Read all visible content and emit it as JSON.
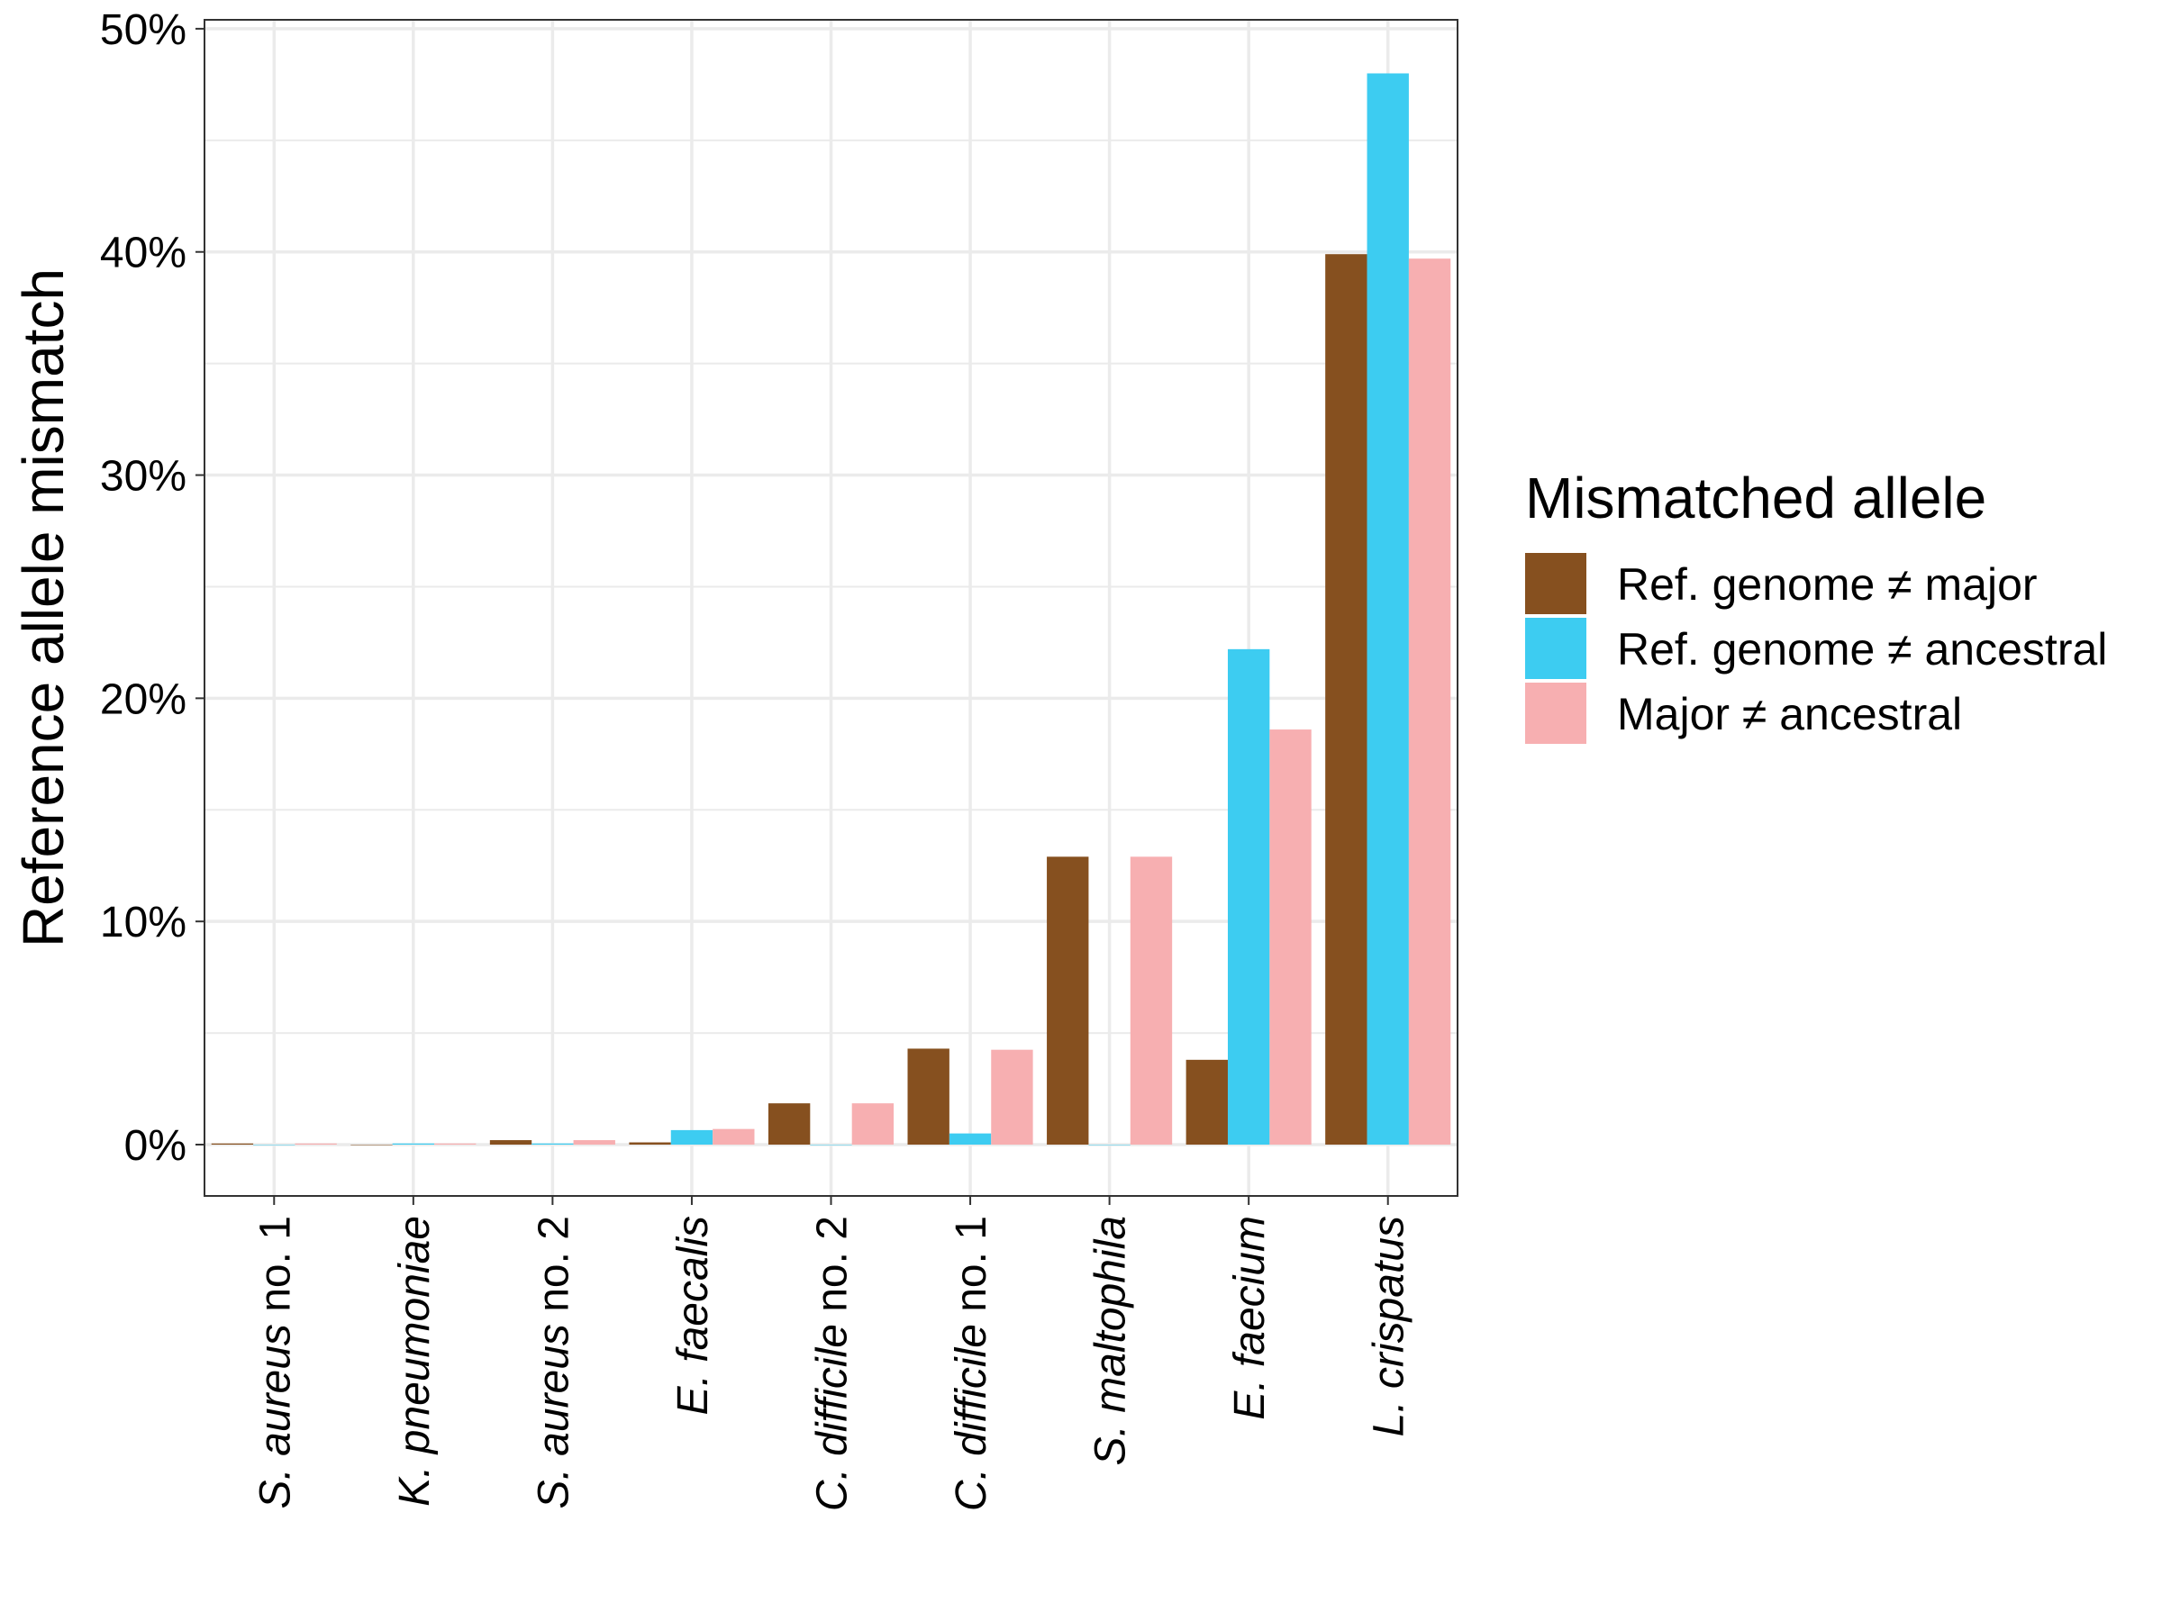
{
  "chart_data": {
    "type": "bar",
    "title": "",
    "xlabel": "",
    "ylabel": "Reference allele mismatch",
    "ylim": [
      -2.3,
      50.4
    ],
    "yticks": [
      0,
      10,
      20,
      30,
      40,
      50
    ],
    "ytick_labels": [
      "0%",
      "10%",
      "20%",
      "30%",
      "40%",
      "50%"
    ],
    "grid": true,
    "legend_position": "right",
    "legend_title": "Mismatched allele",
    "categories": [
      {
        "italic": "S. aureus",
        "suffix": " no. 1"
      },
      {
        "italic": "K. pneumoniae",
        "suffix": ""
      },
      {
        "italic": "S. aureus",
        "suffix": " no. 2"
      },
      {
        "italic": "E. faecalis",
        "suffix": ""
      },
      {
        "italic": "C. difficile",
        "suffix": " no. 2"
      },
      {
        "italic": "C. difficile",
        "suffix": " no. 1"
      },
      {
        "italic": "S. maltophila",
        "suffix": ""
      },
      {
        "italic": "E. faecium",
        "suffix": ""
      },
      {
        "italic": "L. crispatus",
        "suffix": ""
      }
    ],
    "series": [
      {
        "name": "Ref. genome ≠ major",
        "color": "#86501F",
        "values": [
          0.05,
          0.0,
          0.2,
          0.1,
          1.85,
          4.3,
          12.9,
          3.8,
          39.9
        ]
      },
      {
        "name": "Ref. genome ≠ ancestral",
        "color": "#3DCCF1",
        "values": [
          0.0,
          0.05,
          0.05,
          0.65,
          0.0,
          0.5,
          0.0,
          22.2,
          48.0
        ]
      },
      {
        "name": "Major ≠ ancestral",
        "color": "#F7AFB1",
        "values": [
          0.05,
          0.05,
          0.2,
          0.7,
          1.85,
          4.25,
          12.9,
          18.6,
          39.7
        ]
      }
    ]
  }
}
